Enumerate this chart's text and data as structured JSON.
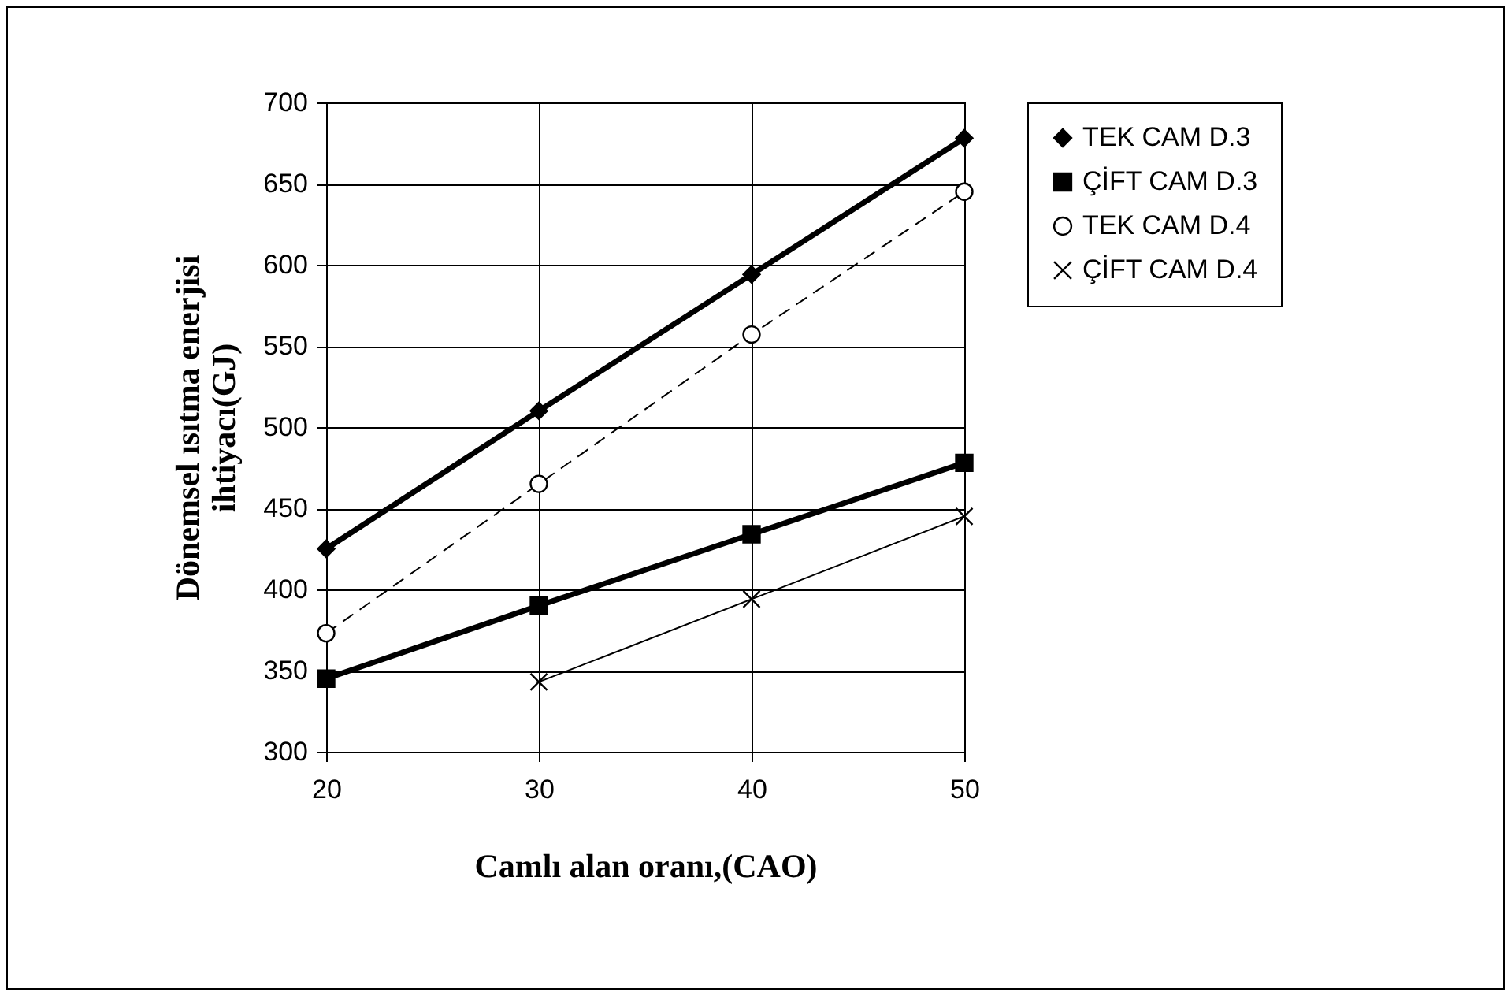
{
  "chart_data": {
    "type": "line",
    "xlabel": "Camlı alan oranı,(CAO)",
    "ylabel": "Dönemsel ısıtma enerjisi ihtiyacı(GJ)",
    "x": [
      20,
      30,
      40,
      50
    ],
    "xlim": [
      20,
      50
    ],
    "xticks": [
      20,
      30,
      40,
      50
    ],
    "ylim": [
      300,
      700
    ],
    "yticks": [
      300,
      350,
      400,
      450,
      500,
      550,
      600,
      650,
      700
    ],
    "grid": true,
    "legend": "right",
    "series": [
      {
        "name": "TEK CAM D.3",
        "color": "#000000",
        "marker": "diamond",
        "line_style": "solid",
        "values": [
          425,
          510,
          594,
          678
        ]
      },
      {
        "name": "ÇİFT CAM D.3",
        "color": "#000000",
        "marker": "square",
        "line_style": "solid",
        "values": [
          345,
          390,
          434,
          478
        ]
      },
      {
        "name": "TEK CAM D.4",
        "color": "#000000",
        "marker": "circle",
        "line_style": "dashed",
        "values": [
          373,
          465,
          557,
          645
        ]
      },
      {
        "name": "ÇİFT CAM D.4",
        "color": "#000000",
        "marker": "cross",
        "line_style": "solid",
        "values": [
          null,
          343,
          394,
          445
        ]
      }
    ]
  }
}
